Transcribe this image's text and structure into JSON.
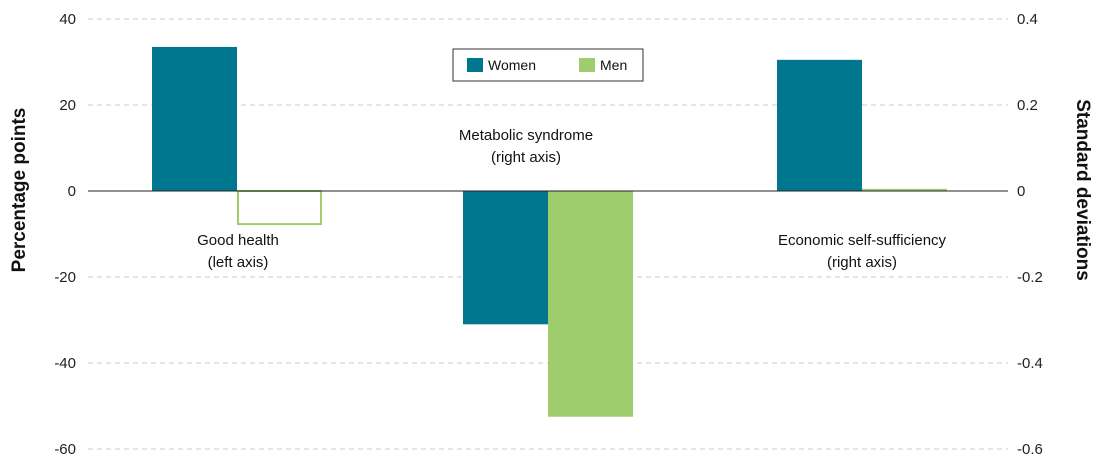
{
  "chart_data": {
    "type": "bar",
    "categories": [
      "Good health",
      "Metabolic syndrome",
      "Economic self-sufficiency"
    ],
    "series": [
      {
        "name": "Women",
        "color": "#00778f",
        "values": [
          33.5,
          -0.31,
          0.305
        ]
      },
      {
        "name": "Men",
        "color": "#9fcd6e",
        "values": [
          -7.7,
          -0.525,
          0.005
        ]
      }
    ],
    "value_axis": [
      "left",
      "right",
      "right"
    ],
    "annotations": [
      {
        "line1": "Good health",
        "line2": "(left axis)"
      },
      {
        "line1": "Metabolic syndrome",
        "line2": "(right axis)"
      },
      {
        "line1": "Economic self-sufficiency",
        "line2": "(right axis)"
      }
    ],
    "y_left": {
      "label": "Percentage points",
      "ylim": [
        -60,
        40
      ],
      "ticks": [
        "40",
        "20",
        "0",
        "-20",
        "-40",
        "-60"
      ]
    },
    "y_right": {
      "label": "Standard deviations",
      "ylim": [
        -0.6,
        0.4
      ],
      "ticks": [
        "0.4",
        "0.2",
        "0",
        "-0.2",
        "-0.4",
        "-0.6"
      ]
    },
    "grid": true,
    "legend_position": "top-center",
    "legend": [
      "Women",
      "Men"
    ]
  }
}
